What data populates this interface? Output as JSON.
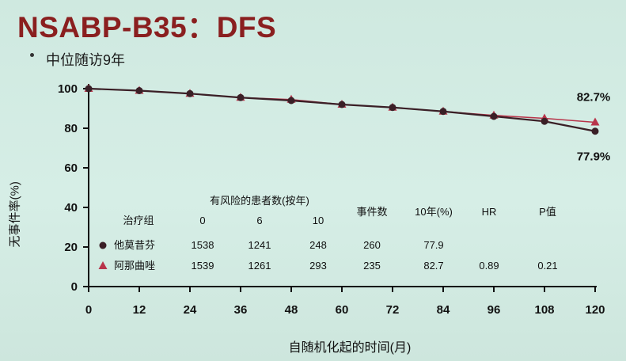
{
  "title": "NSABP-B35：DFS",
  "subtitle": "中位随访9年",
  "chart_data": {
    "type": "line",
    "xlabel": "自随机化起的时间(月)",
    "ylabel": "无事件率(%)",
    "xlim": [
      0,
      120
    ],
    "ylim": [
      0,
      100
    ],
    "xticks": [
      0,
      12,
      24,
      36,
      48,
      60,
      72,
      84,
      96,
      108,
      120
    ],
    "yticks": [
      0,
      20,
      40,
      60,
      80,
      100
    ],
    "grid": false,
    "series": [
      {
        "name": "他莫昔芬",
        "marker": "circle",
        "color": "#3a1f26",
        "x": [
          0,
          12,
          24,
          36,
          48,
          60,
          72,
          84,
          96,
          108,
          120
        ],
        "y": [
          100,
          99,
          97.5,
          95.5,
          94,
          92,
          90.5,
          88.5,
          86,
          83.5,
          78.5
        ]
      },
      {
        "name": "阿那曲唑",
        "marker": "triangle",
        "color": "#b8344a",
        "x": [
          0,
          12,
          24,
          36,
          48,
          60,
          72,
          84,
          96,
          108,
          120
        ],
        "y": [
          100,
          99,
          97.5,
          95.5,
          94.5,
          92,
          90.5,
          88.5,
          86.5,
          85,
          83
        ]
      }
    ],
    "annotations": [
      {
        "text": "82.7%",
        "x": 120,
        "y": 89
      },
      {
        "text": "77.9%",
        "x": 120,
        "y": 67
      }
    ],
    "table": {
      "header_group": "有风险的患者数(按年)",
      "columns": [
        "治疗组",
        "0",
        "6",
        "10",
        "事件数",
        "10年(%)",
        "HR",
        "P值"
      ],
      "rows": [
        {
          "label": "他莫昔芬",
          "marker": "circle",
          "values": [
            "1538",
            "1241",
            "248",
            "260",
            "77.9",
            "",
            ""
          ]
        },
        {
          "label": "阿那曲唑",
          "marker": "triangle",
          "values": [
            "1539",
            "1261",
            "293",
            "235",
            "82.7",
            "0.89",
            "0.21"
          ]
        }
      ]
    }
  }
}
